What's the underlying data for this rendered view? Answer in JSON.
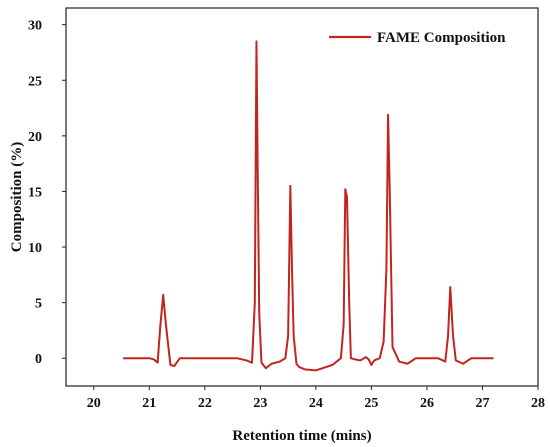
{
  "chart_data": {
    "type": "line",
    "title": "",
    "xlabel": "Retention time (mins)",
    "ylabel": "Composition (%)",
    "xlim": [
      19.5,
      28
    ],
    "ylim": [
      -2.5,
      31.5
    ],
    "xticks": [
      "20",
      "21",
      "22",
      "23",
      "24",
      "25",
      "26",
      "27",
      "28"
    ],
    "yticks": [
      "0",
      "5",
      "10",
      "15",
      "20",
      "25",
      "30"
    ],
    "grid": false,
    "legend_position": "top-right",
    "series": [
      {
        "name": "FAME Composition",
        "color": "#c0261f",
        "x": [
          20.53,
          20.85,
          21.0,
          21.08,
          21.15,
          21.2,
          21.25,
          21.3,
          21.38,
          21.45,
          21.55,
          22.0,
          22.58,
          22.75,
          22.85,
          22.9,
          22.93,
          22.95,
          22.98,
          23.02,
          23.1,
          23.2,
          23.35,
          23.45,
          23.5,
          23.54,
          23.57,
          23.6,
          23.65,
          23.7,
          23.8,
          24.0,
          24.3,
          24.45,
          24.5,
          24.53,
          24.56,
          24.6,
          24.63,
          24.7,
          24.8,
          24.9,
          24.95,
          25.0,
          25.05,
          25.15,
          25.22,
          25.27,
          25.3,
          25.33,
          25.38,
          25.5,
          25.65,
          25.8,
          26.0,
          26.2,
          26.33,
          26.38,
          26.42,
          26.47,
          26.52,
          26.65,
          26.8,
          27.0,
          27.2
        ],
        "y": [
          0,
          0,
          0,
          -0.1,
          -0.4,
          3.0,
          5.7,
          3.0,
          -0.6,
          -0.7,
          0,
          0,
          0,
          -0.2,
          -0.4,
          5.0,
          28.5,
          18.0,
          4.0,
          -0.4,
          -0.9,
          -0.5,
          -0.3,
          0,
          2.0,
          15.5,
          8.0,
          2.0,
          -0.5,
          -0.8,
          -1.0,
          -1.1,
          -0.6,
          0,
          3.0,
          15.2,
          14.5,
          5.0,
          0,
          -0.1,
          -0.2,
          0.1,
          -0.1,
          -0.6,
          -0.2,
          0,
          1.5,
          8.0,
          21.9,
          15.0,
          1.0,
          -0.3,
          -0.5,
          0,
          0,
          0,
          -0.3,
          2.0,
          6.4,
          2.0,
          -0.2,
          -0.5,
          0,
          0,
          0
        ]
      }
    ]
  }
}
